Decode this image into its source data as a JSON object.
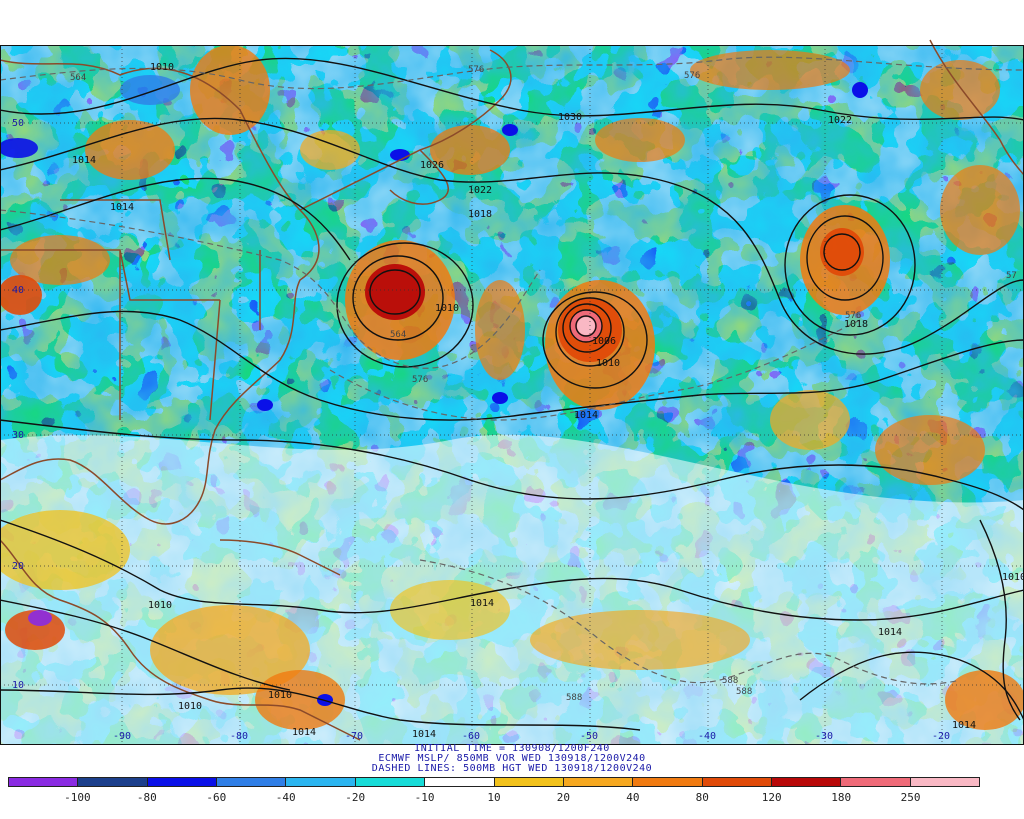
{
  "caption": {
    "line1": "INITIAL TIME = 130908/1200F240",
    "line2": "ECMWF MSLP/ 850MB VOR WED 130918/1200V240",
    "line3": "DASHED LINES: 500MB HGT WED 130918/1200V240"
  },
  "colorbar": {
    "colors": [
      "#8a2be2",
      "#1c3f8c",
      "#0a10e8",
      "#2f7ee6",
      "#2bb5f0",
      "#18dcd8",
      "#ffffff",
      "#f2c21c",
      "#f6a820",
      "#f07a10",
      "#e04a08",
      "#b80808",
      "#ef6a78",
      "#f9b8c4"
    ],
    "labels": [
      "-100",
      "-80",
      "-60",
      "-40",
      "-20",
      "-10",
      "10",
      "20",
      "40",
      "80",
      "120",
      "180",
      "250"
    ]
  },
  "map": {
    "longitude_labels": [
      "-90",
      "-80",
      "-70",
      "-60",
      "-50",
      "-40",
      "-30",
      "-20"
    ],
    "latitude_labels": [
      "50",
      "40",
      "30",
      "20",
      "10"
    ],
    "isobar_labels": [
      "1010",
      "1014",
      "1014",
      "1026",
      "1030",
      "1022",
      "1018",
      "1022",
      "1010",
      "1006",
      "1010",
      "1014",
      "1018",
      "1014",
      "1014",
      "1010",
      "1010",
      "1010",
      "1014",
      "1014",
      "1014",
      "1010"
    ],
    "height_labels": [
      "564",
      "576",
      "564",
      "576",
      "576",
      "588",
      "588",
      "588",
      "576",
      "57"
    ]
  }
}
